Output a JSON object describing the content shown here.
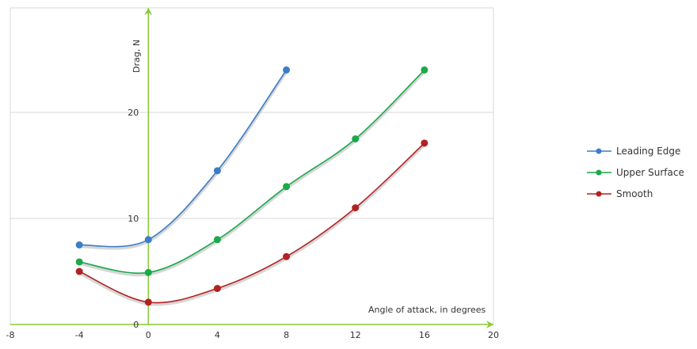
{
  "chart_data": {
    "type": "line",
    "title": "",
    "xlabel": "Angle of attack, in degrees",
    "ylabel": "Drag, N",
    "xlim": [
      -8,
      20
    ],
    "ylim": [
      0,
      26
    ],
    "x_ticks": [
      -8,
      -4,
      0,
      4,
      8,
      12,
      16,
      20
    ],
    "y_ticks": [
      0,
      10,
      20
    ],
    "x_tick_labels": [
      "-8",
      "-4",
      "0",
      "4",
      "8",
      "12",
      "16",
      "20"
    ],
    "y_tick_labels": [
      "0",
      "10",
      "20"
    ],
    "grid": true,
    "legend_position": "right",
    "series": [
      {
        "name": "Leading Edge",
        "color": "#3a7dc9",
        "x": [
          -4,
          0,
          4,
          8
        ],
        "y": [
          7.5,
          8.0,
          14.5,
          24.0
        ]
      },
      {
        "name": "Upper Surface",
        "color": "#1aa94c",
        "x": [
          -4,
          0,
          4,
          8,
          12,
          16
        ],
        "y": [
          5.9,
          4.9,
          8.0,
          13.0,
          17.5,
          24.0
        ]
      },
      {
        "name": "Smooth",
        "color": "#b22222",
        "x": [
          -4,
          0,
          4,
          8,
          12,
          16
        ],
        "y": [
          5.0,
          2.1,
          3.4,
          6.4,
          11.0,
          17.1
        ]
      }
    ],
    "colors": {
      "axis": "#88cc33",
      "grid": "#d9d9d9"
    }
  }
}
